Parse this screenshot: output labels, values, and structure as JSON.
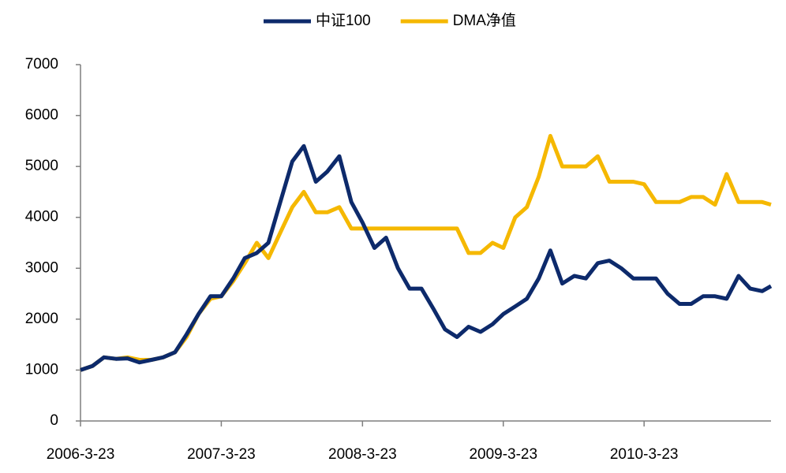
{
  "chart_data": {
    "type": "line",
    "x": [
      "2006-3-23",
      "2006-4-23",
      "2006-5-23",
      "2006-6-23",
      "2006-7-23",
      "2006-8-23",
      "2006-9-23",
      "2006-10-23",
      "2006-11-23",
      "2006-12-23",
      "2007-1-23",
      "2007-2-23",
      "2007-3-23",
      "2007-4-23",
      "2007-5-23",
      "2007-6-23",
      "2007-7-23",
      "2007-8-23",
      "2007-9-23",
      "2007-10-23",
      "2007-11-23",
      "2007-12-23",
      "2008-1-23",
      "2008-2-23",
      "2008-3-23",
      "2008-4-23",
      "2008-5-23",
      "2008-6-23",
      "2008-7-23",
      "2008-8-23",
      "2008-9-23",
      "2008-10-23",
      "2008-11-23",
      "2008-12-23",
      "2009-1-23",
      "2009-2-23",
      "2009-3-23",
      "2009-4-23",
      "2009-5-23",
      "2009-6-23",
      "2009-7-23",
      "2009-8-23",
      "2009-9-23",
      "2009-10-23",
      "2009-11-23",
      "2009-12-23",
      "2010-1-23",
      "2010-2-23",
      "2010-3-23",
      "2010-4-23",
      "2010-5-23",
      "2010-6-23",
      "2010-7-23",
      "2010-8-23",
      "2010-9-23",
      "2010-10-23",
      "2010-11-23",
      "2010-12-23",
      "2011-1-23",
      "2011-2-15"
    ],
    "series": [
      {
        "name": "中证100",
        "color": "#0d2a6b",
        "values": [
          1000,
          1080,
          1250,
          1220,
          1230,
          1150,
          1200,
          1250,
          1350,
          1700,
          2100,
          2450,
          2450,
          2800,
          3200,
          3300,
          3500,
          4300,
          5100,
          5400,
          4700,
          4900,
          5200,
          4300,
          3900,
          3400,
          3600,
          3000,
          2600,
          2600,
          2200,
          1800,
          1650,
          1850,
          1750,
          1900,
          2100,
          2250,
          2400,
          2800,
          3350,
          2700,
          2850,
          2800,
          3100,
          3150,
          3000,
          2800,
          2800,
          2800,
          2500,
          2300,
          2300,
          2450,
          2450,
          2400,
          2850,
          2600,
          2550,
          2650
        ]
      },
      {
        "name": "DMA净值",
        "color": "#f5b800",
        "values": [
          1000,
          1080,
          1250,
          1220,
          1250,
          1200,
          1200,
          1250,
          1350,
          1650,
          2100,
          2400,
          2450,
          2750,
          3100,
          3500,
          3200,
          3700,
          4200,
          4500,
          4100,
          4100,
          4200,
          3780,
          3780,
          3780,
          3780,
          3780,
          3780,
          3780,
          3780,
          3780,
          3780,
          3300,
          3300,
          3500,
          3400,
          4000,
          4200,
          4800,
          5600,
          5000,
          5000,
          5000,
          5200,
          4700,
          4700,
          4700,
          4650,
          4300,
          4300,
          4300,
          4400,
          4400,
          4250,
          4850,
          4300,
          4300,
          4300,
          4250
        ]
      }
    ],
    "xlim": [
      "2006-3-23",
      "2011-2-15"
    ],
    "xticks": [
      "2006-3-23",
      "2007-3-23",
      "2008-3-23",
      "2009-3-23",
      "2010-3-23"
    ],
    "ylim": [
      0,
      7000
    ],
    "yticks": [
      0,
      1000,
      2000,
      3000,
      4000,
      5000,
      6000,
      7000
    ],
    "legend": "top"
  }
}
